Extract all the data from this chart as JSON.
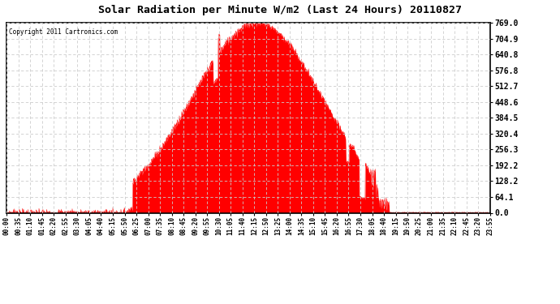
{
  "title": "Solar Radiation per Minute W/m2 (Last 24 Hours) 20110827",
  "copyright": "Copyright 2011 Cartronics.com",
  "fill_color": "#ff0000",
  "background_color": "#ffffff",
  "plot_bg_color": "#ffffff",
  "grid_color": "#cccccc",
  "grid_line_style": "--",
  "border_color": "#000000",
  "dashed_zero_color": "#ff0000",
  "y_ticks": [
    0.0,
    64.1,
    128.2,
    192.2,
    256.3,
    320.4,
    384.5,
    448.6,
    512.7,
    576.8,
    640.8,
    704.9,
    769.0
  ],
  "y_max": 769.0,
  "x_labels": [
    "00:00",
    "00:35",
    "01:10",
    "01:45",
    "02:20",
    "02:55",
    "03:30",
    "04:05",
    "04:40",
    "05:15",
    "05:50",
    "06:25",
    "07:00",
    "07:35",
    "08:10",
    "08:45",
    "09:20",
    "09:55",
    "10:30",
    "11:05",
    "11:40",
    "12:15",
    "12:50",
    "13:25",
    "14:00",
    "14:35",
    "15:10",
    "15:45",
    "16:20",
    "16:55",
    "17:30",
    "18:05",
    "18:40",
    "19:15",
    "19:50",
    "20:25",
    "21:00",
    "21:35",
    "22:10",
    "22:45",
    "23:20",
    "23:55"
  ],
  "sunrise_hour": 6.25,
  "sunset_hour": 18.55,
  "peak_hour": 12.45,
  "peak_value": 769.0
}
